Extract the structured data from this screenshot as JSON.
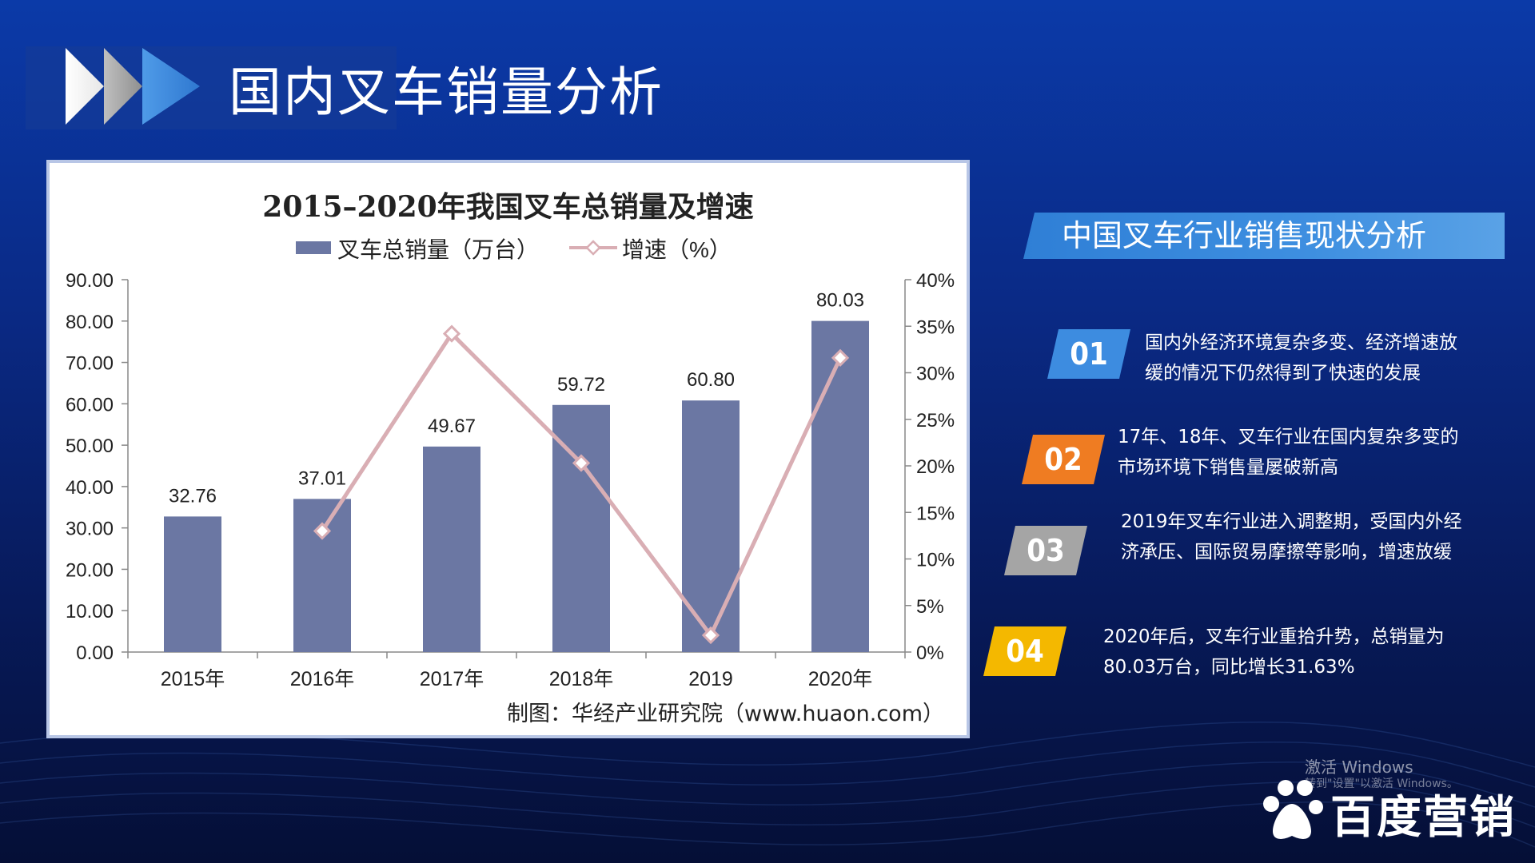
{
  "page": {
    "title": "国内叉车销量分析"
  },
  "chart_data": {
    "type": "bar",
    "title": "2015–2020年我国叉车总销量及增速",
    "categories": [
      "2015年",
      "2016年",
      "2017年",
      "2018年",
      "2019",
      "2020年"
    ],
    "series": [
      {
        "name": "叉车总销量（万台）",
        "type": "bar",
        "axis": "left",
        "values": [
          32.76,
          37.01,
          49.67,
          59.72,
          60.8,
          80.03
        ],
        "labels": [
          "32.76",
          "37.01",
          "49.67",
          "59.72",
          "60.80",
          "80.03"
        ],
        "color": "#6b77a3"
      },
      {
        "name": "增速（%）",
        "type": "line",
        "axis": "right",
        "values": [
          null,
          13.0,
          34.2,
          20.3,
          1.8,
          31.6
        ],
        "color": "#d9aeb4"
      }
    ],
    "left_axis": {
      "min": 0,
      "max": 90,
      "ticks": [
        "0.00",
        "10.00",
        "20.00",
        "30.00",
        "40.00",
        "50.00",
        "60.00",
        "70.00",
        "80.00",
        "90.00"
      ]
    },
    "right_axis": {
      "min": 0,
      "max": 40,
      "ticks": [
        "0%",
        "5%",
        "10%",
        "15%",
        "20%",
        "25%",
        "30%",
        "35%",
        "40%"
      ]
    },
    "legend_position": "top",
    "grid": false,
    "source": "制图：华经产业研究院（www.huaon.com）"
  },
  "panel": {
    "title": "中国叉车行业销售现状分析",
    "items": [
      {
        "num": "01",
        "color": "#3d8ce0",
        "lines": [
          "国内外经济环境复杂多变、经济增速放",
          "缓的情况下仍然得到了快速的发展"
        ]
      },
      {
        "num": "02",
        "color": "#ef7c22",
        "lines": [
          "17年、18年、叉车行业在国内复杂多变的",
          "市场环境下销售量屡破新高"
        ]
      },
      {
        "num": "03",
        "color": "#a5a5a5",
        "lines": [
          "2019年叉车行业进入调整期，受国内外经",
          "济承压、国际贸易摩擦等影响，增速放缓"
        ]
      },
      {
        "num": "04",
        "color": "#f4b800",
        "lines": [
          "2020年后，叉车行业重拾升势，总销量为",
          "80.03万台，同比增长31.63%"
        ]
      }
    ]
  },
  "watermark": {
    "line1": "激活 Windows",
    "line2": "转到\"设置\"以激活 Windows。"
  },
  "brand": {
    "name": "百度营销",
    "icon": "baidu-paw-icon"
  }
}
